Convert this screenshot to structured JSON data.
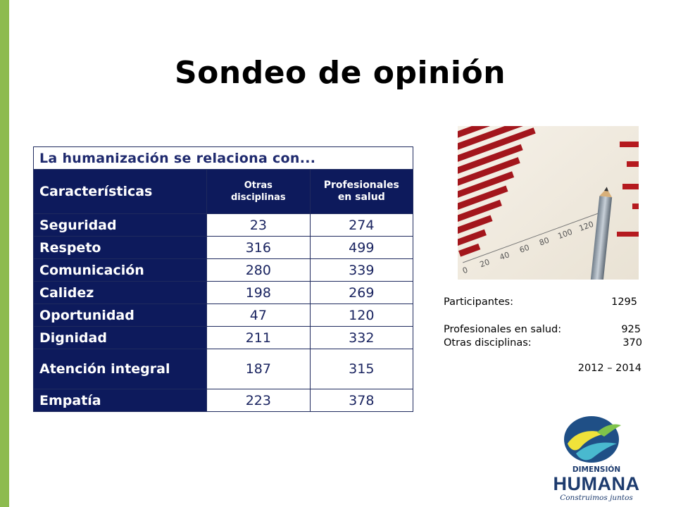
{
  "title": "Sondeo de opinión",
  "table": {
    "caption": "La humanización se relaciona con...",
    "headers": {
      "characteristic": "Características",
      "other_line1": "Otras",
      "other_line2": "disciplinas",
      "health_line1": "Profesionales",
      "health_line2": "en salud"
    },
    "rows": [
      {
        "label": "Seguridad",
        "other": "23",
        "health": "274"
      },
      {
        "label": "Respeto",
        "other": "316",
        "health": "499"
      },
      {
        "label": "Comunicación",
        "other": "280",
        "health": "339"
      },
      {
        "label": "Calidez",
        "other": "198",
        "health": "269"
      },
      {
        "label": "Oportunidad",
        "other": "47",
        "health": "120"
      },
      {
        "label": "Dignidad",
        "other": "211",
        "health": "332"
      },
      {
        "label": "Atención integral",
        "other": "187",
        "health": "315"
      },
      {
        "label": "Empatía",
        "other": "223",
        "health": "378"
      }
    ]
  },
  "photo": {
    "axis_labels": [
      "0",
      "20",
      "40",
      "60",
      "80",
      "100",
      "120"
    ]
  },
  "stats": {
    "participants_label": "Participantes:",
    "participants_value": "1295",
    "health_label": "Profesionales en salud:",
    "health_value": "925",
    "other_label": "Otras disciplinas:",
    "other_value": "370",
    "years": "2012 – 2014"
  },
  "logo": {
    "name_line1": "DIMENSIÓN",
    "name_line2": "HUMANA",
    "tagline": "Construimos juntos"
  },
  "colors": {
    "accent_green": "#8dbb4f",
    "table_navy": "#0d1a5c",
    "logo_blue": "#1d3b6e"
  }
}
